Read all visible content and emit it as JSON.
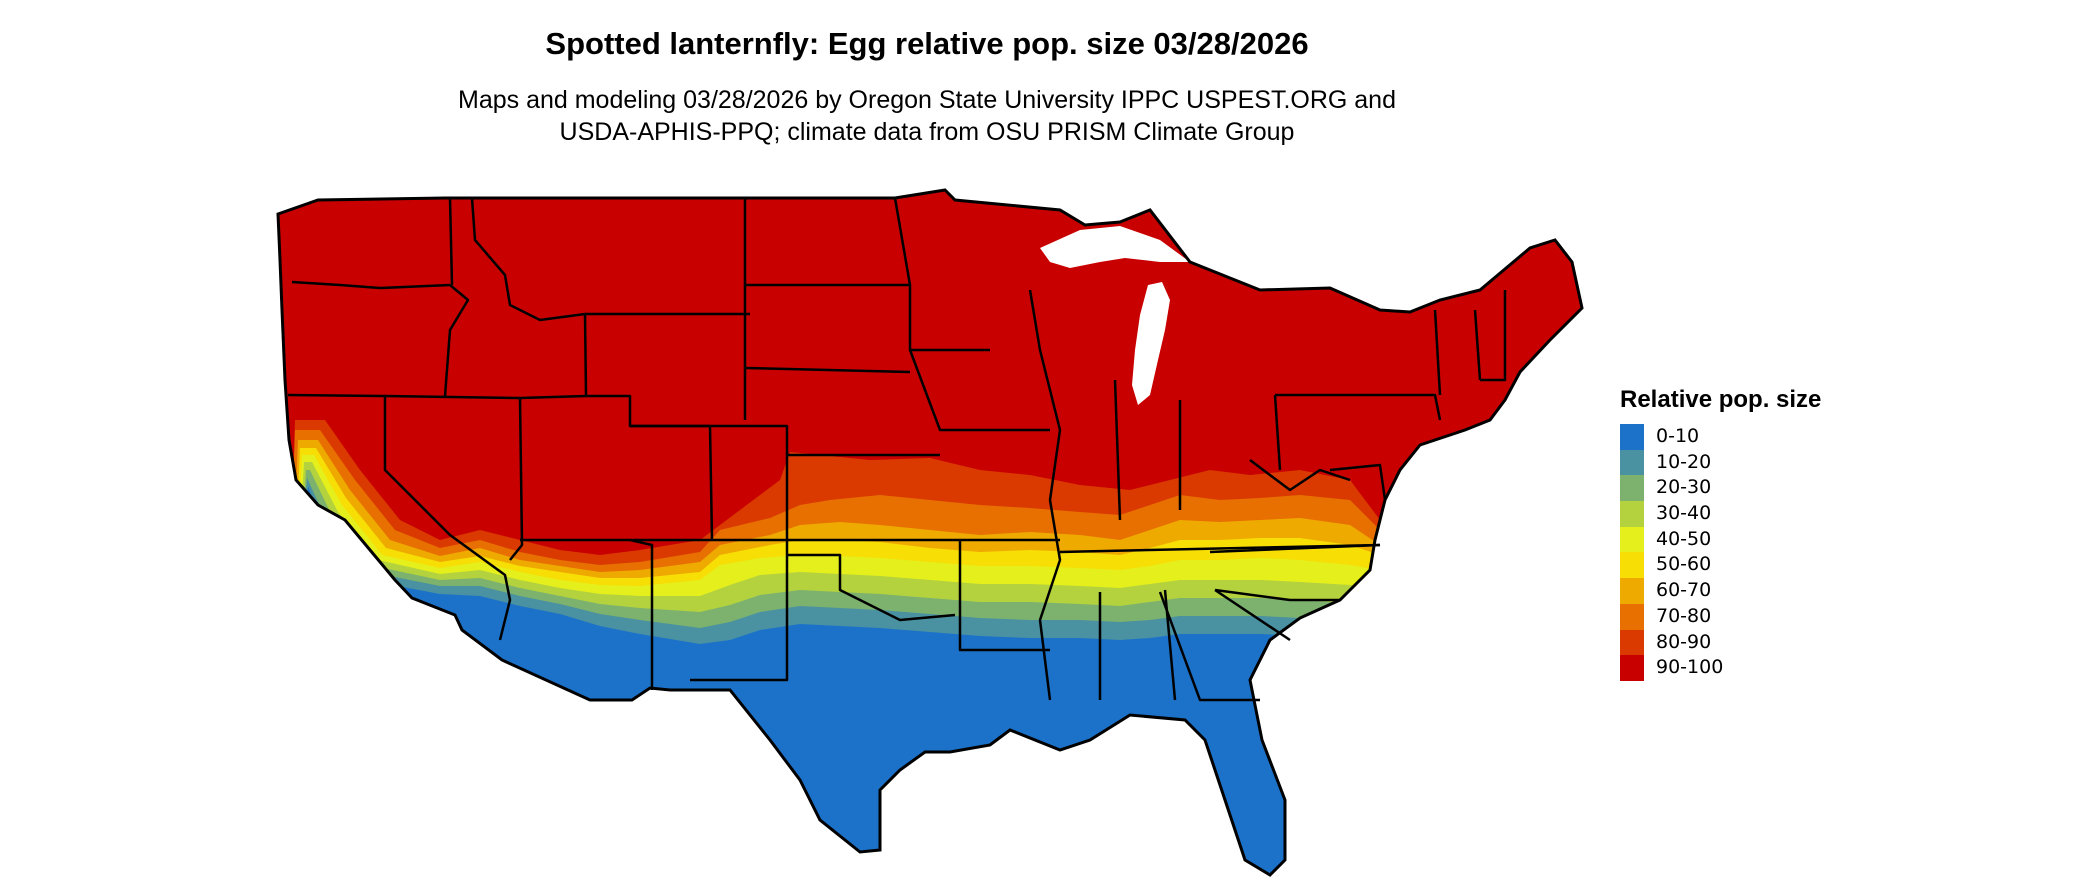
{
  "title": "Spotted lanternfly: Egg relative pop. size 03/28/2026",
  "subtitle": {
    "line1": "Maps and modeling 03/28/2026 by Oregon State University IPPC USPEST.ORG and",
    "line2": "USDA-APHIS-PPQ; climate data from OSU PRISM Climate Group"
  },
  "legend": {
    "title": "Relative pop. size",
    "items": [
      {
        "label": "0-10",
        "color": "#1c72c9"
      },
      {
        "label": "10-20",
        "color": "#4a91a1"
      },
      {
        "label": "20-30",
        "color": "#7cb26e"
      },
      {
        "label": "30-40",
        "color": "#b3d23e"
      },
      {
        "label": "40-50",
        "color": "#e4ef1c"
      },
      {
        "label": "50-60",
        "color": "#f7de05"
      },
      {
        "label": "60-70",
        "color": "#efaa00"
      },
      {
        "label": "70-80",
        "color": "#e77000"
      },
      {
        "label": "80-90",
        "color": "#da3a00"
      },
      {
        "label": "90-100",
        "color": "#c80000"
      }
    ]
  }
}
